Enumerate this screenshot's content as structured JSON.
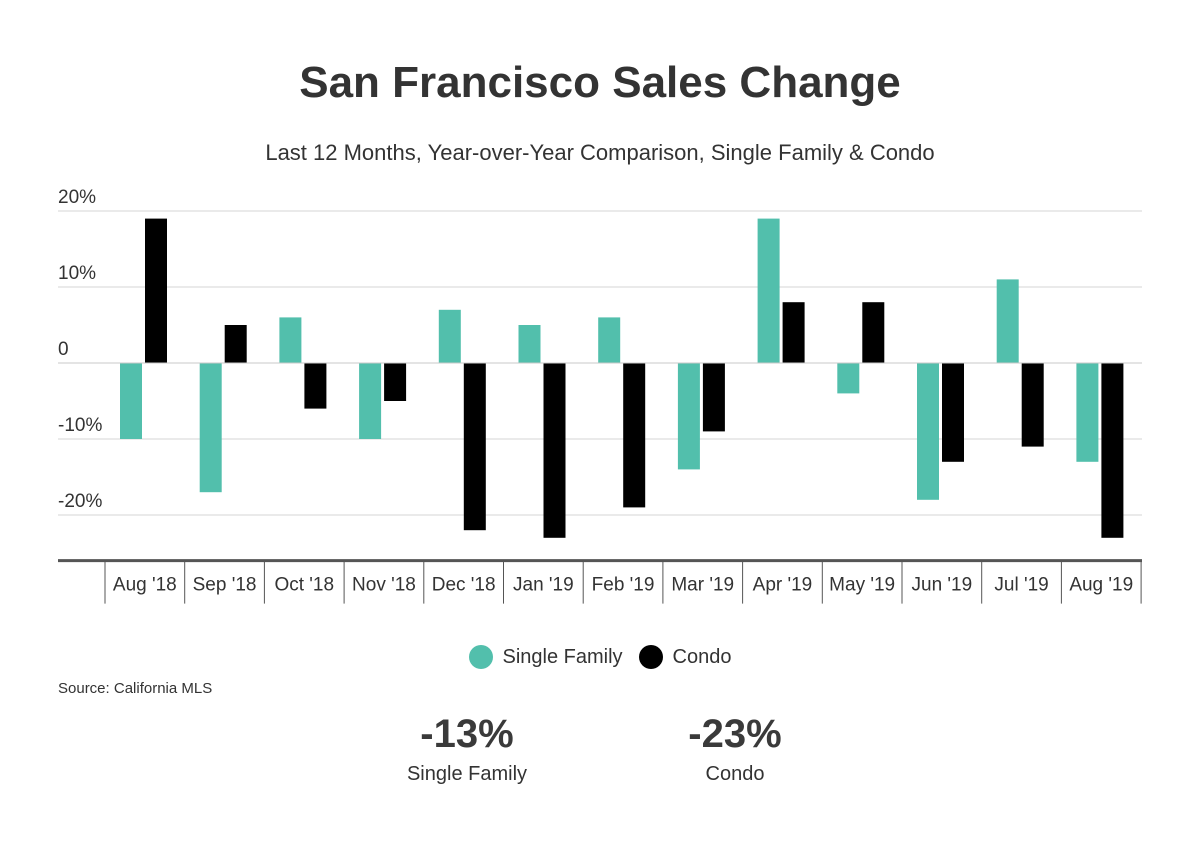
{
  "chart_data": {
    "type": "bar",
    "title": "San Francisco Sales Change",
    "subtitle": "Last 12 Months, Year-over-Year Comparison, Single Family & Condo",
    "categories": [
      "Aug '18",
      "Sep '18",
      "Oct '18",
      "Nov '18",
      "Dec '18",
      "Jan '19",
      "Feb '19",
      "Mar '19",
      "Apr '19",
      "May '19",
      "Jun '19",
      "Jul '19",
      "Aug '19"
    ],
    "series": [
      {
        "name": "Single Family",
        "color": "#52bfac",
        "values": [
          -10,
          -17,
          6,
          -10,
          7,
          5,
          6,
          -14,
          19,
          -4,
          -18,
          11,
          -13
        ]
      },
      {
        "name": "Condo",
        "color": "#000000",
        "values": [
          19,
          5,
          -6,
          -5,
          -22,
          -23,
          -19,
          -9,
          8,
          8,
          -13,
          -11,
          -23
        ]
      }
    ],
    "yticks": [
      {
        "value": 20,
        "label": "20%"
      },
      {
        "value": 10,
        "label": "10%"
      },
      {
        "value": 0,
        "label": "0"
      },
      {
        "value": -10,
        "label": "-10%"
      },
      {
        "value": -20,
        "label": "-20%"
      }
    ],
    "ylim": [
      -26,
      20
    ],
    "grid": true,
    "legend_position": "bottom-center"
  },
  "source": "Source:  California MLS",
  "summary": [
    {
      "value": "-13%",
      "label": "Single Family"
    },
    {
      "value": "-23%",
      "label": "Condo"
    }
  ]
}
